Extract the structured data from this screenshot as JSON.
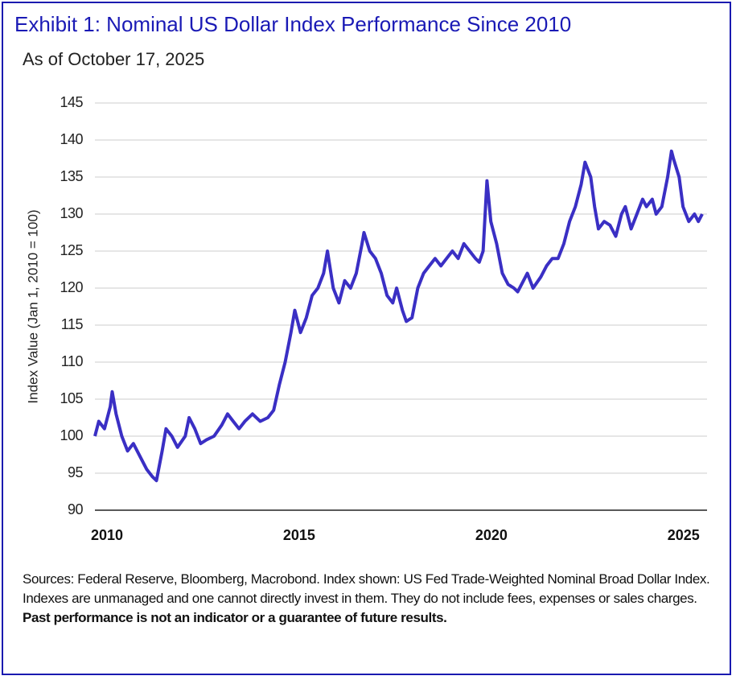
{
  "chart_data": {
    "type": "line",
    "title": "Exhibit 1: Nominal US Dollar Index Performance Since 2010",
    "subtitle": "As of October 17, 2025",
    "ylabel": "Index Value (Jan 1, 2010 = 100)",
    "note": "Sources: Federal Reserve, Bloomberg, Macrobond. Index shown: US Fed Trade-Weighted Nominal Broad Dollar Index. Indexes are unmanaged and one cannot directly invest in them. They do not include fees, expenses or sales charges.",
    "note_bold": "Past performance is not an indicator or a guarantee of future results.",
    "color": "#3a2fc4",
    "grid": true,
    "xlim": [
      2010,
      2025.8
    ],
    "xticks": [
      2010,
      2015,
      2020,
      2025
    ],
    "ylim": [
      90,
      145
    ],
    "yticks": [
      90,
      95,
      100,
      105,
      110,
      115,
      120,
      125,
      130,
      135,
      140,
      145
    ],
    "x": [
      2010.0,
      2010.1,
      2010.25,
      2010.4,
      2010.45,
      2010.55,
      2010.7,
      2010.85,
      2011.0,
      2011.2,
      2011.35,
      2011.5,
      2011.6,
      2011.75,
      2011.85,
      2012.0,
      2012.15,
      2012.35,
      2012.45,
      2012.6,
      2012.75,
      2012.9,
      2013.1,
      2013.3,
      2013.45,
      2013.6,
      2013.75,
      2013.9,
      2014.1,
      2014.3,
      2014.5,
      2014.65,
      2014.8,
      2014.95,
      2015.1,
      2015.2,
      2015.35,
      2015.5,
      2015.65,
      2015.8,
      2015.95,
      2016.05,
      2016.2,
      2016.35,
      2016.5,
      2016.65,
      2016.8,
      2016.95,
      2017.0,
      2017.15,
      2017.3,
      2017.45,
      2017.6,
      2017.75,
      2017.85,
      2018.0,
      2018.1,
      2018.25,
      2018.4,
      2018.55,
      2018.7,
      2018.85,
      2019.0,
      2019.15,
      2019.3,
      2019.45,
      2019.6,
      2019.75,
      2019.9,
      2020.0,
      2020.1,
      2020.2,
      2020.3,
      2020.45,
      2020.6,
      2020.75,
      2020.9,
      2021.0,
      2021.15,
      2021.25,
      2021.4,
      2021.6,
      2021.75,
      2021.9,
      2022.05,
      2022.2,
      2022.35,
      2022.5,
      2022.65,
      2022.75,
      2022.9,
      2023.0,
      2023.1,
      2023.25,
      2023.4,
      2023.55,
      2023.7,
      2023.8,
      2023.95,
      2024.1,
      2024.25,
      2024.35,
      2024.5,
      2024.6,
      2024.75,
      2024.9,
      2025.0,
      2025.05,
      2025.2,
      2025.3,
      2025.45,
      2025.6,
      2025.7,
      2025.8
    ],
    "values": [
      100,
      102,
      101,
      104,
      106,
      103,
      100,
      98,
      99,
      97,
      95.5,
      94.5,
      94,
      98,
      101,
      100,
      98.5,
      100,
      102.5,
      101,
      99,
      99.5,
      100,
      101.5,
      103,
      102,
      101,
      102,
      103,
      102,
      102.5,
      103.5,
      107,
      110,
      114,
      117,
      114,
      116,
      119,
      120,
      122,
      125,
      120,
      118,
      121,
      120,
      122,
      126,
      127.5,
      125,
      124,
      122,
      119,
      118,
      120,
      117,
      115.5,
      116,
      120,
      122,
      123,
      124,
      123,
      124,
      125,
      124,
      126,
      125,
      124,
      123.5,
      125,
      134.5,
      129,
      126,
      122,
      120.5,
      120,
      119.5,
      121,
      122,
      120,
      121.5,
      123,
      124,
      124,
      126,
      129,
      131,
      134,
      137,
      135,
      131,
      128,
      129,
      128.5,
      127,
      130,
      131,
      128,
      130,
      132,
      131,
      132,
      130,
      131,
      135,
      138.5,
      137.5,
      135,
      131,
      129,
      130,
      129,
      130
    ]
  }
}
